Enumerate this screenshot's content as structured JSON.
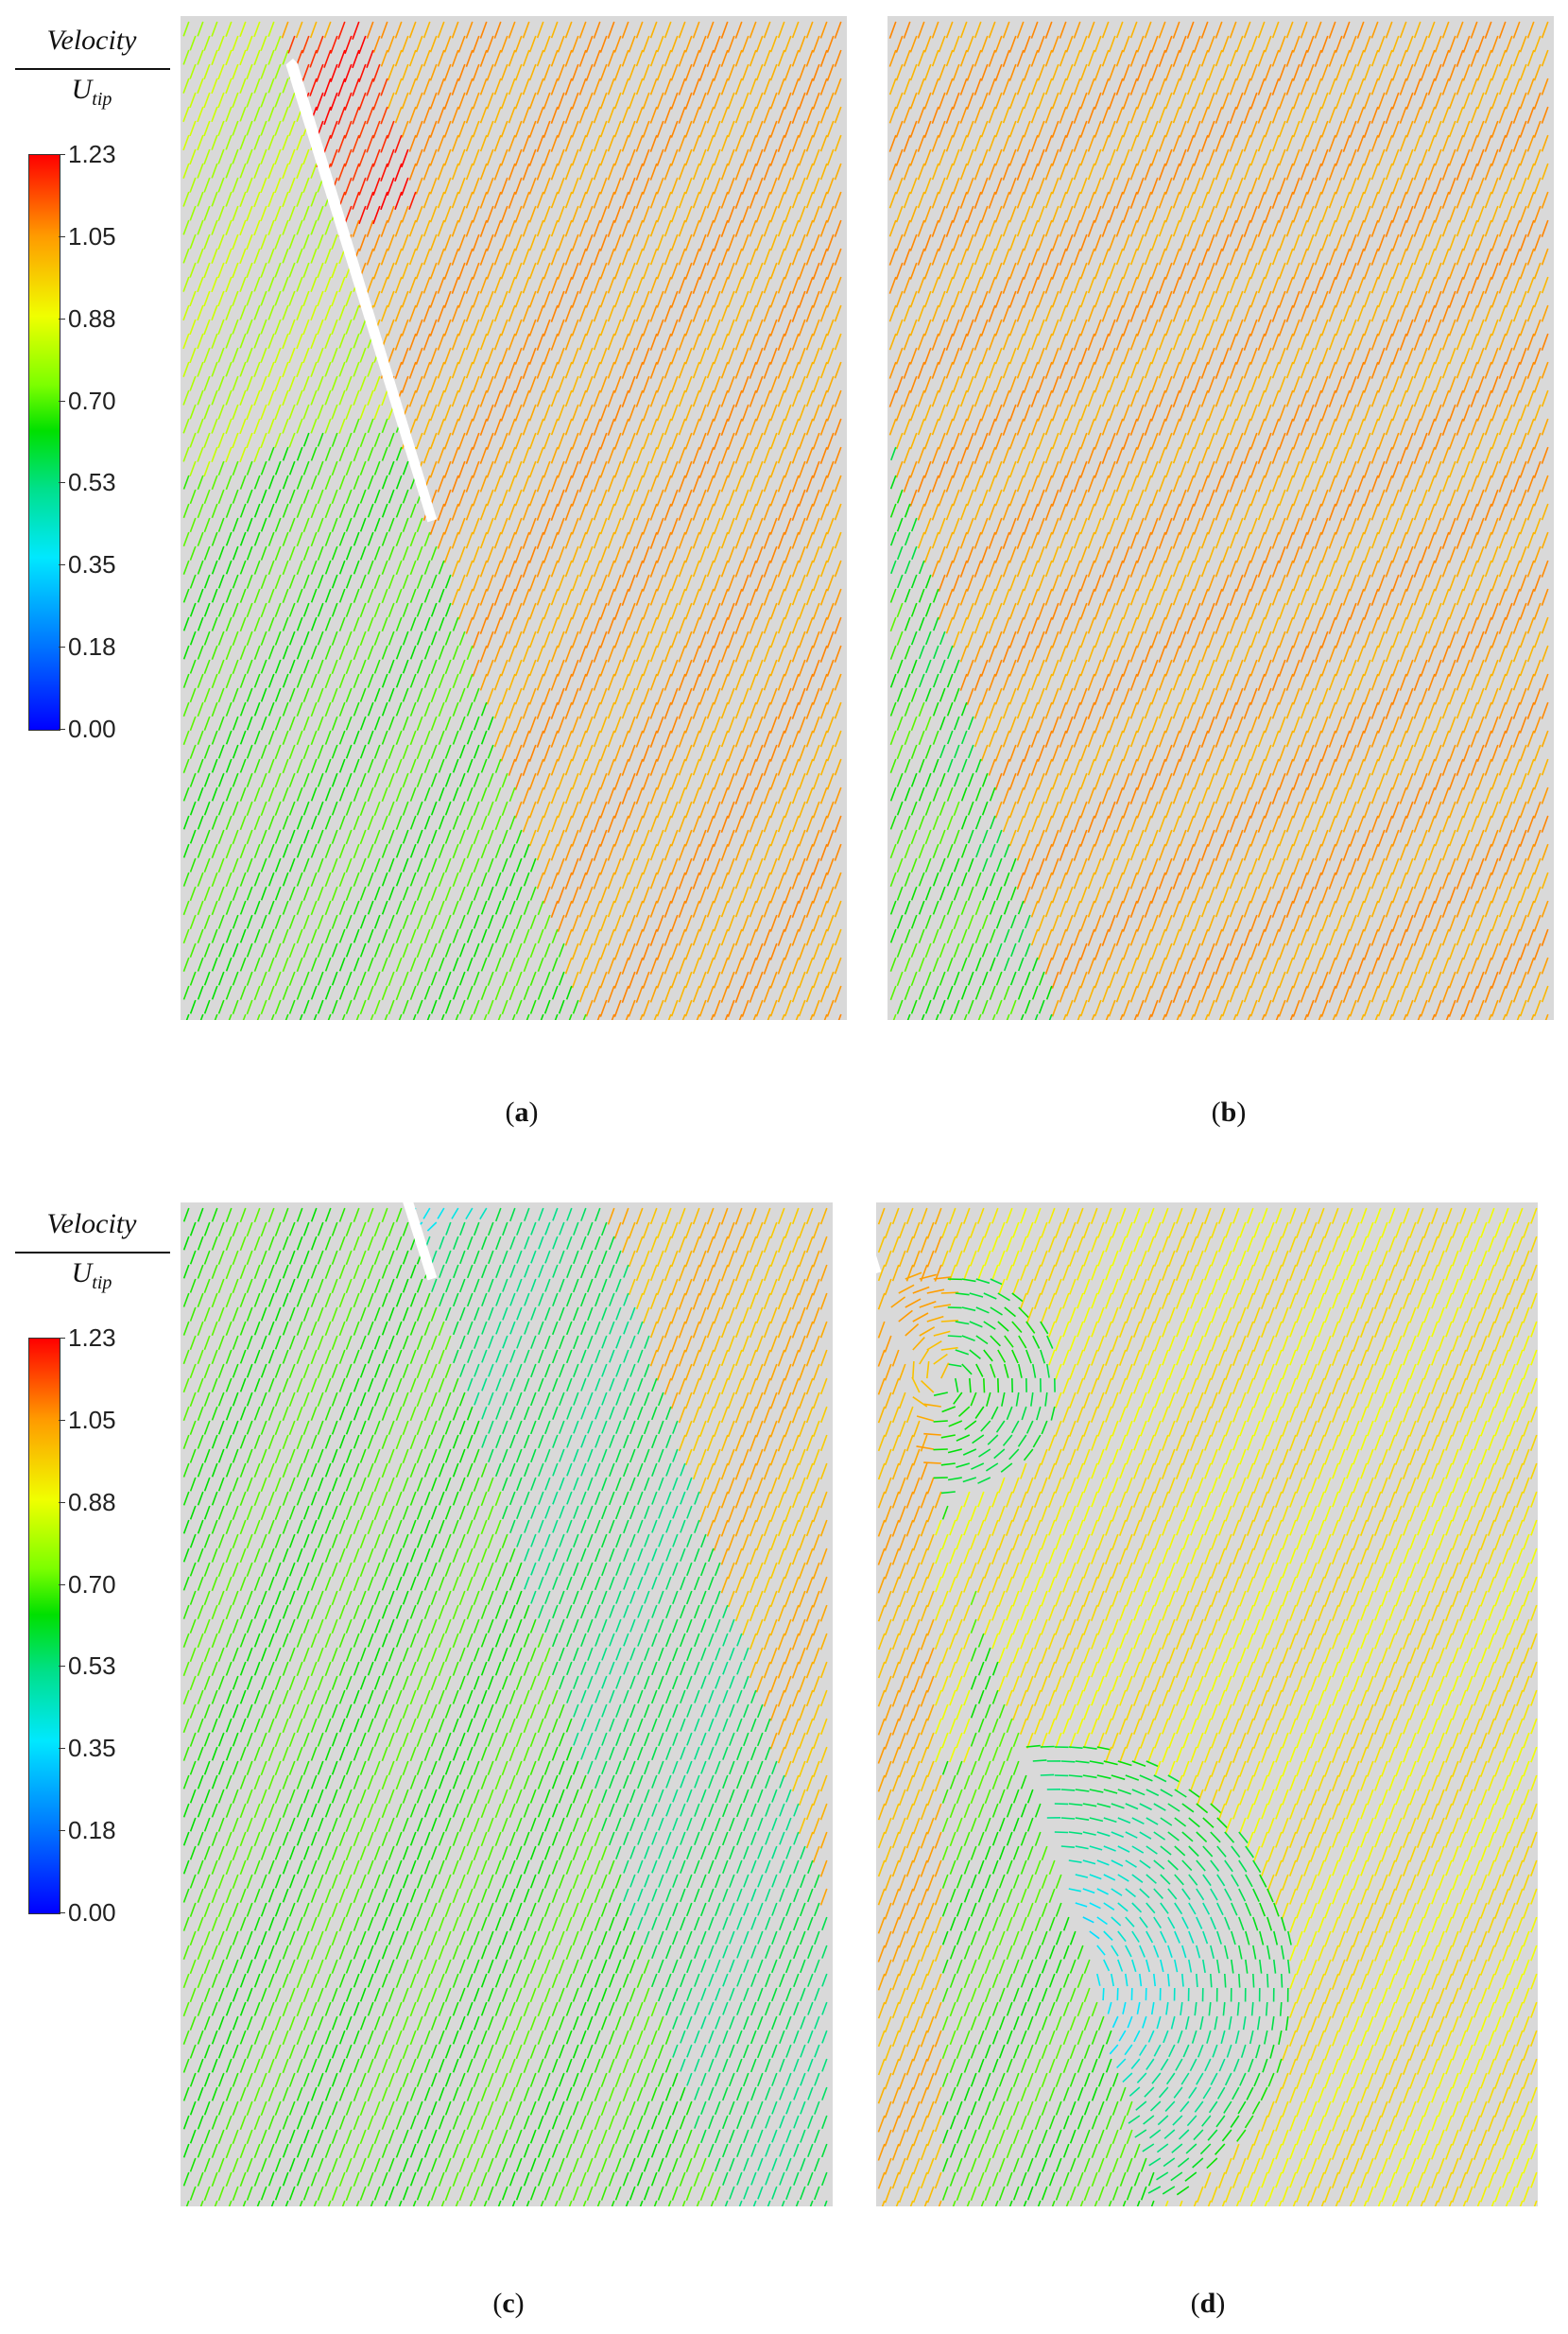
{
  "figure": {
    "legend": {
      "numerator": "Velocity",
      "denominator": "U",
      "denominator_sub": "tip",
      "ticks": [
        "1.23",
        "1.05",
        "0.88",
        "0.70",
        "0.53",
        "0.35",
        "0.18",
        "0.00"
      ],
      "colors": [
        "#ff0000",
        "#ff9a00",
        "#f0ff00",
        "#7cff00",
        "#00e000",
        "#00e08a",
        "#00e8ff",
        "#0070ff",
        "#0000ff"
      ]
    },
    "panels": [
      {
        "label": "a",
        "description_key": "attached-flow"
      },
      {
        "label": "b",
        "description_key": "trailing-shear"
      },
      {
        "label": "c",
        "description_key": "separation"
      },
      {
        "label": "d",
        "description_key": "vortex"
      }
    ]
  }
}
